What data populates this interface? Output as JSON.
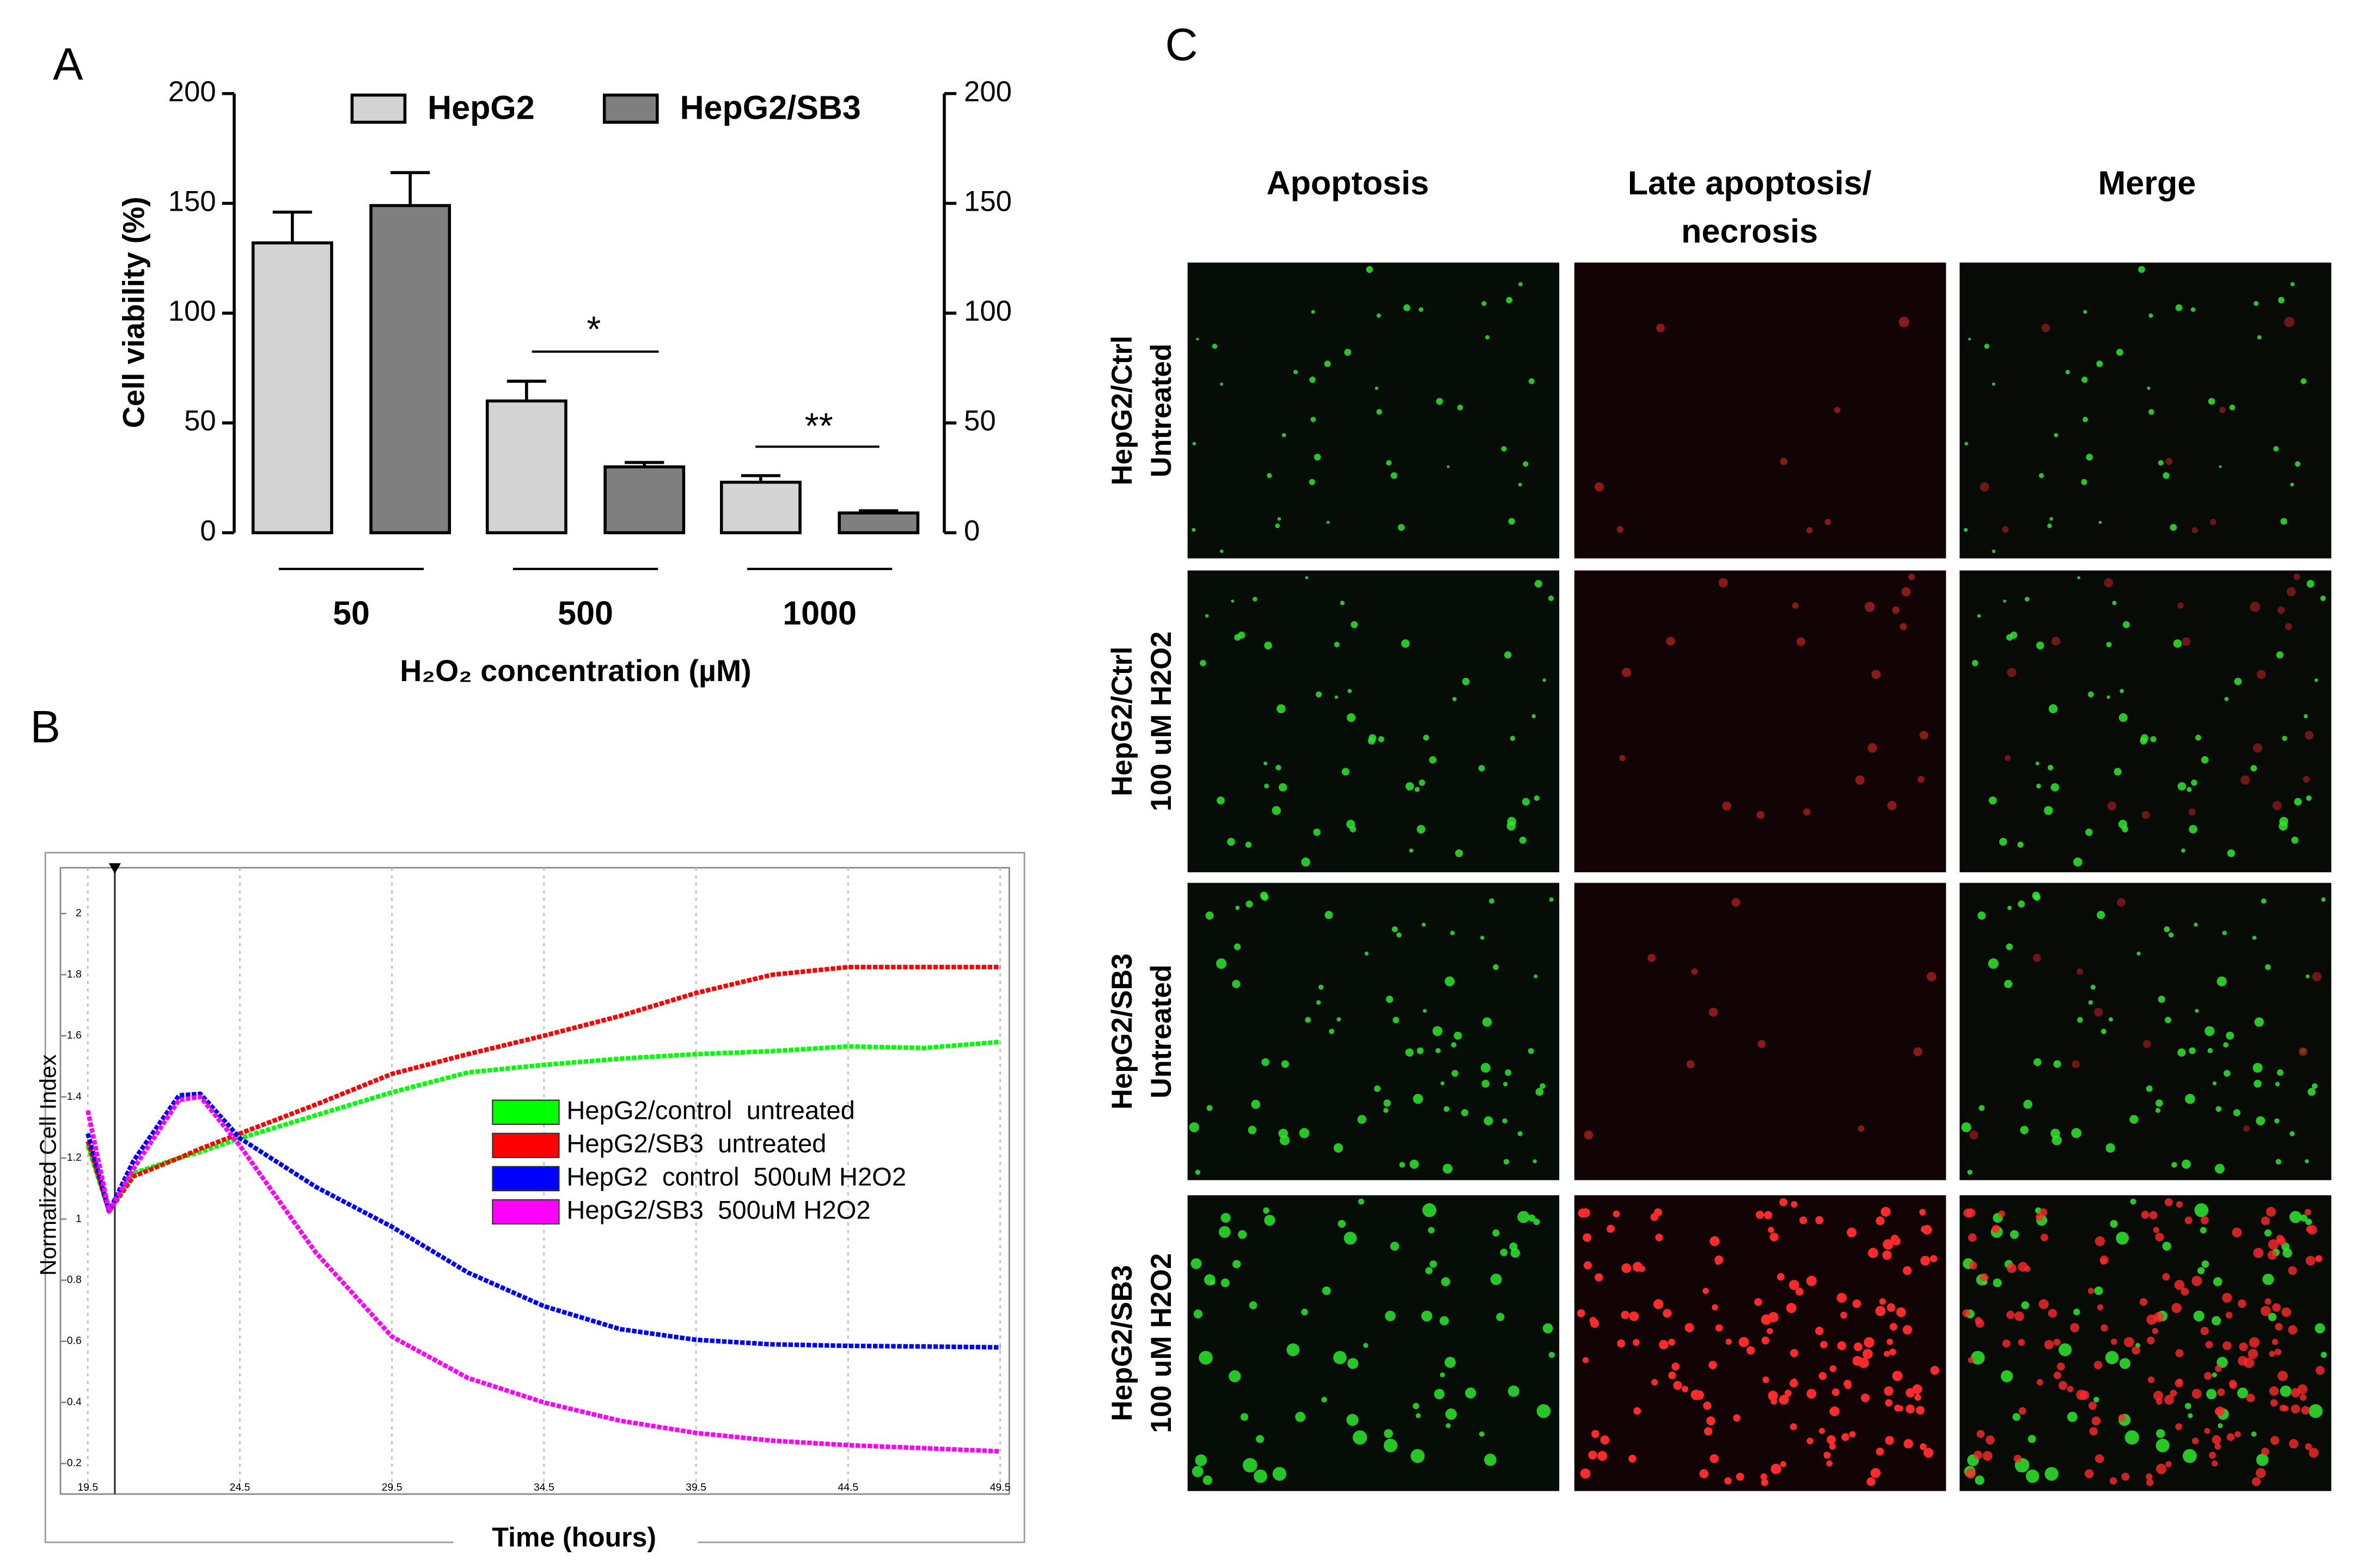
{
  "chart_data": [
    {
      "type": "bar",
      "panel_label": "A",
      "categories": [
        "50",
        "500",
        "1000"
      ],
      "series": [
        {
          "name": "HepG2",
          "color": "#d3d3d3",
          "values": [
            132,
            60,
            23
          ],
          "errors": [
            14,
            9,
            3
          ]
        },
        {
          "name": "HepG2/SB3",
          "color": "#7f7f7f",
          "values": [
            149,
            30,
            9
          ],
          "errors": [
            15,
            2,
            1
          ]
        }
      ],
      "ylim": [
        0,
        200
      ],
      "yticks": [
        0,
        50,
        100,
        150,
        200
      ],
      "y2lim": [
        0,
        200
      ],
      "y2ticks": [
        0,
        50,
        100,
        150,
        200
      ],
      "y_label": "Cell viability (%)",
      "x_label": "H₂O₂ concentration (µM)",
      "annotations": [
        "*",
        "**"
      ]
    },
    {
      "type": "line",
      "panel_label": "B",
      "x": [
        19.5,
        20.2,
        21,
        22.5,
        23.2,
        24.5,
        27,
        29.5,
        32,
        34.5,
        37,
        39.5,
        42,
        44.5,
        47,
        49.5
      ],
      "series": [
        {
          "name": "HepG2/control  untreated",
          "color": "#00ff00",
          "values": [
            1.24,
            1.025,
            1.15,
            1.2,
            1.22,
            1.265,
            1.34,
            1.415,
            1.48,
            1.505,
            1.525,
            1.54,
            1.55,
            1.565,
            1.56,
            1.58
          ]
        },
        {
          "name": "HepG2/SB3  untreated",
          "color": "#ff0000",
          "values": [
            1.255,
            1.025,
            1.14,
            1.2,
            1.23,
            1.28,
            1.375,
            1.475,
            1.54,
            1.6,
            1.665,
            1.74,
            1.8,
            1.825,
            1.825,
            1.825
          ]
        },
        {
          "name": "HepG2  control  500uM H2O2",
          "color": "#0000ff",
          "values": [
            1.28,
            1.025,
            1.19,
            1.405,
            1.41,
            1.265,
            1.105,
            0.975,
            0.825,
            0.715,
            0.64,
            0.605,
            0.59,
            0.585,
            0.583,
            0.58
          ]
        },
        {
          "name": "HepG2/SB3  500uM H2O2",
          "color": "#ff00ff",
          "values": [
            1.355,
            1.025,
            1.165,
            1.39,
            1.4,
            1.24,
            0.89,
            0.615,
            0.48,
            0.4,
            0.34,
            0.3,
            0.275,
            0.26,
            0.25,
            0.24
          ]
        }
      ],
      "xlim": [
        18.6,
        49.8
      ],
      "xticks": [
        19.5,
        24.5,
        29.5,
        34.5,
        39.5,
        44.5,
        49.5
      ],
      "ylim": [
        0.1,
        2.15
      ],
      "yticks": [
        0.2,
        0.4,
        0.6,
        0.8,
        1,
        1.2,
        1.4,
        1.6,
        1.8,
        2
      ],
      "grid": true,
      "x_label": "Time (hours)",
      "y_label": "Normalized Cell Index"
    }
  ],
  "panel_c": {
    "label": "C",
    "columns": [
      [
        "Apoptosis"
      ],
      [
        "Late apoptosis/",
        "necrosis"
      ],
      [
        "Merge"
      ]
    ],
    "rows": [
      [
        "HepG2/Ctrl",
        "Untreated"
      ],
      [
        "HepG2/Ctrl",
        "100 uM H2O2"
      ],
      [
        "HepG2/SB3",
        "Untreated"
      ],
      [
        "HepG2/SB3",
        "100 uM H2O2"
      ]
    ]
  }
}
